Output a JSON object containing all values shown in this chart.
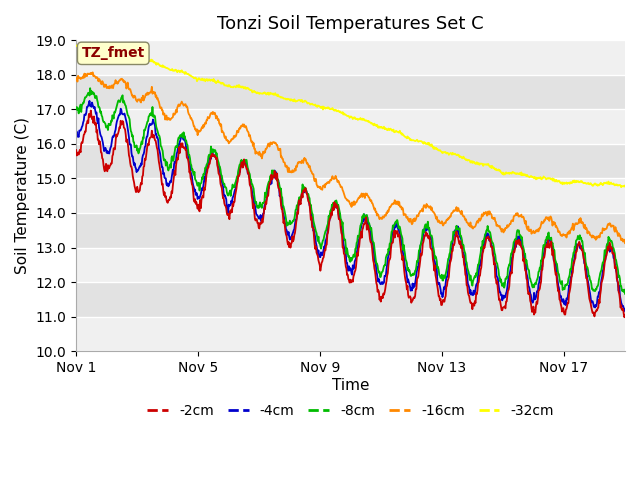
{
  "title": "Tonzi Soil Temperatures Set C",
  "xlabel": "Time",
  "ylabel": "Soil Temperature (C)",
  "ylim": [
    10.0,
    19.0
  ],
  "yticks": [
    10.0,
    11.0,
    12.0,
    13.0,
    14.0,
    15.0,
    16.0,
    17.0,
    18.0,
    19.0
  ],
  "xtick_labels": [
    "Nov 1",
    "Nov 5",
    "Nov 9",
    "Nov 13",
    "Nov 17"
  ],
  "xtick_positions": [
    0,
    4,
    8,
    12,
    16
  ],
  "n_days": 18,
  "colors": {
    "-2cm": "#cc0000",
    "-4cm": "#0000cc",
    "-8cm": "#00bb00",
    "-16cm": "#ff8800",
    "-32cm": "#ffff00"
  },
  "legend_labels": [
    "-2cm",
    "-4cm",
    "-8cm",
    "-16cm",
    "-32cm"
  ],
  "annotation_text": "TZ_fmet",
  "annotation_color": "#8b0000",
  "annotation_bg": "#ffffcc",
  "background_color": "#ffffff",
  "plot_bg_light": "#ebebeb",
  "plot_bg_dark": "#d8d8d8",
  "grid_color": "#ffffff",
  "title_fontsize": 13,
  "axis_fontsize": 11,
  "tick_fontsize": 10,
  "band_colors": [
    "#f0f0f0",
    "#e0e0e0"
  ]
}
